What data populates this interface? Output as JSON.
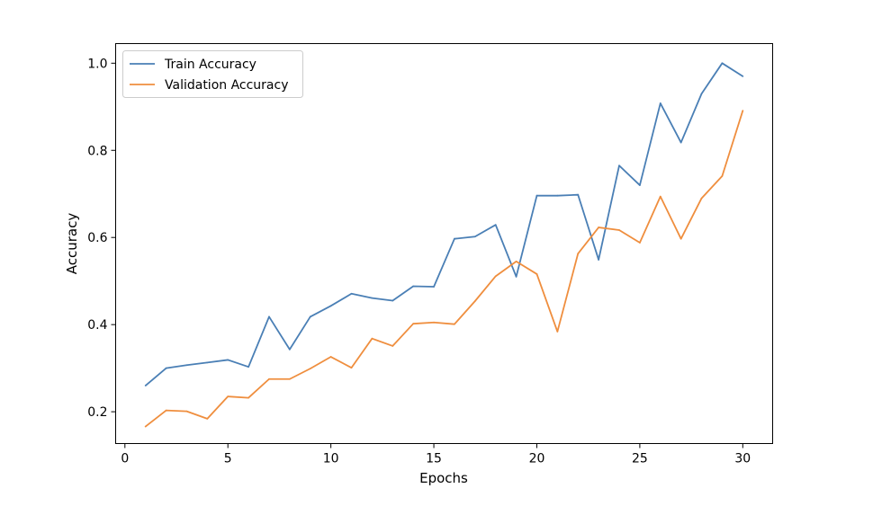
{
  "chart_data": {
    "type": "line",
    "title": "",
    "xlabel": "Epochs",
    "ylabel": "Accuracy",
    "xlim": [
      -0.45,
      31.45
    ],
    "ylim": [
      0.127,
      1.045
    ],
    "xticks": [
      0,
      5,
      10,
      15,
      20,
      25,
      30
    ],
    "xtick_labels": [
      "0",
      "5",
      "10",
      "15",
      "20",
      "25",
      "30"
    ],
    "yticks": [
      0.2,
      0.4,
      0.6,
      0.8,
      1.0
    ],
    "ytick_labels": [
      "0.2",
      "0.4",
      "0.6",
      "0.8",
      "1.0"
    ],
    "grid": false,
    "legend_position": "upper left",
    "x": [
      1,
      2,
      3,
      4,
      5,
      6,
      7,
      8,
      9,
      10,
      11,
      12,
      13,
      14,
      15,
      16,
      17,
      18,
      19,
      20,
      21,
      22,
      23,
      24,
      25,
      26,
      27,
      28,
      29,
      30
    ],
    "series": [
      {
        "name": "Train Accuracy",
        "color": "#4a7fb5",
        "values": [
          0.26,
          0.3,
          0.307,
          0.313,
          0.319,
          0.303,
          0.418,
          0.343,
          0.418,
          0.443,
          0.471,
          0.461,
          0.455,
          0.488,
          0.487,
          0.597,
          0.602,
          0.629,
          0.51,
          0.696,
          0.696,
          0.698,
          0.549,
          0.765,
          0.72,
          0.908,
          0.818,
          0.93,
          1.0,
          0.97
        ]
      },
      {
        "name": "Validation Accuracy",
        "color": "#ef8e3e",
        "values": [
          0.166,
          0.203,
          0.201,
          0.184,
          0.235,
          0.232,
          0.275,
          0.275,
          0.299,
          0.326,
          0.301,
          0.368,
          0.351,
          0.402,
          0.405,
          0.401,
          0.454,
          0.511,
          0.545,
          0.516,
          0.384,
          0.563,
          0.623,
          0.617,
          0.588,
          0.694,
          0.597,
          0.69,
          0.741,
          0.891
        ]
      }
    ]
  }
}
